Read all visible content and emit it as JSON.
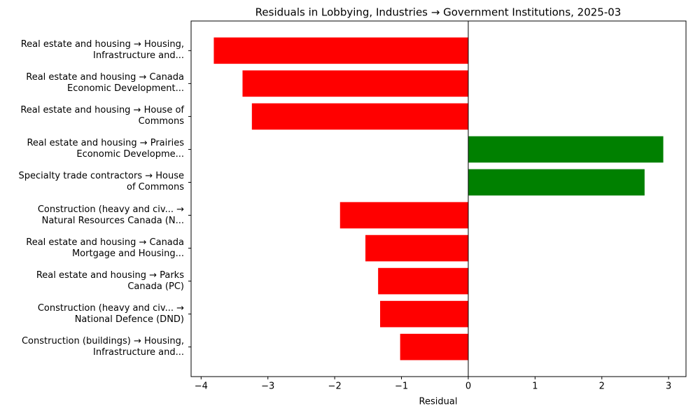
{
  "chart_data": {
    "type": "barh",
    "title": "Residuals in Lobbying, Industries → Government Institutions, 2025-03",
    "xlabel": "Residual",
    "categories": [
      "Real estate and housing → Housing,\nInfrastructure and...",
      "Real estate and housing → Canada\nEconomic Development...",
      "Real estate and housing → House of\nCommons",
      "Real estate and housing → Prairies\nEconomic Developme...",
      "Specialty trade contractors → House\nof Commons",
      "Construction (heavy and civ... →\nNatural Resources Canada (N...",
      "Real estate and housing → Canada\nMortgage and Housing...",
      "Real estate and housing → Parks\nCanada (PC)",
      "Construction (heavy and civ... →\nNational Defence (DND)",
      "Construction (buildings) → Housing,\nInfrastructure and..."
    ],
    "values": [
      -3.81,
      -3.38,
      -3.24,
      2.92,
      2.64,
      -1.92,
      -1.54,
      -1.35,
      -1.32,
      -1.02
    ],
    "colors": [
      "#ff0000",
      "#ff0000",
      "#ff0000",
      "#008000",
      "#008000",
      "#ff0000",
      "#ff0000",
      "#ff0000",
      "#ff0000",
      "#ff0000"
    ],
    "xlim": [
      -4.15,
      3.26
    ],
    "xticks": [
      {
        "value": -4,
        "label": "−4"
      },
      {
        "value": -3,
        "label": "−3"
      },
      {
        "value": -2,
        "label": "−2"
      },
      {
        "value": -1,
        "label": "−1"
      },
      0,
      1,
      2,
      3
    ]
  }
}
